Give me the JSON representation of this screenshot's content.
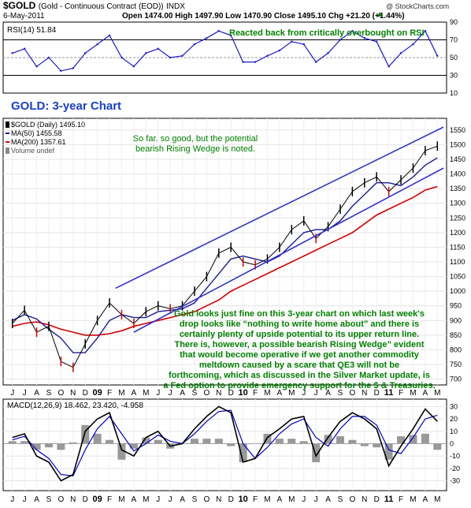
{
  "header": {
    "symbol": "$GOLD",
    "name": "(Gold - Continuous Contract (EOD))",
    "exchange": "INDX",
    "date": "6-May-2011",
    "ohlc": "Open 1474.00   High 1497.90   Low 1470.90   Close 1495.10   Chg +21.20 (+1.44%)",
    "watermark": "@ StockCharts.com",
    "trend_arrow": "▲"
  },
  "rsi_panel": {
    "label": "RSI(14) 51.84",
    "annotation": "Reacted back from critically overbought on RSI",
    "ticks": [
      "90",
      "70",
      "50",
      "30",
      "10"
    ]
  },
  "price_panel": {
    "title": "GOLD: 3-year Chart",
    "legend": {
      "price": "$GOLD (Daily) 1495.10",
      "ma50": "MA(50) 1455.58",
      "ma200": "MA(200) 1357.61",
      "volume": "Volume undef"
    },
    "annotation_top": [
      "So far. so good, but the potential",
      "bearish Rising Wedge is noted."
    ],
    "annotation_bottom": [
      "Gold looks just fine on this 3-year chart on which last week's",
      "drop looks like “nothing to write home about” and there is",
      "certainly plenty of upside potential to its upper return line.",
      "There is, however, a possible bearish Rising Wedge” evident",
      "that would become operative if we get another commodity",
      "meltdown caused by a scare that QE3 will not be",
      "forthcoming, which as discussed in the Silver Market update, is",
      "a Fed option to provide emergency support for the $ & Treasuries."
    ],
    "ticks": [
      "1550",
      "1500",
      "1450",
      "1400",
      "1350",
      "1300",
      "1250",
      "1200",
      "1150",
      "1100",
      "1050",
      "1000",
      "950",
      "900",
      "850",
      "800",
      "750",
      "700"
    ]
  },
  "macd_panel": {
    "label": "MACD(12,26,9) 18.462, 23.420, -4.958",
    "ticks": [
      "30",
      "20",
      "10",
      "0",
      "-10",
      "-20",
      "-30"
    ]
  },
  "x_axis": {
    "labels": [
      "J",
      "J",
      "A",
      "S",
      "O",
      "N",
      "D",
      "09",
      "F",
      "M",
      "A",
      "M",
      "J",
      "J",
      "A",
      "S",
      "O",
      "N",
      "D",
      "10",
      "F",
      "M",
      "A",
      "M",
      "J",
      "J",
      "A",
      "S",
      "O",
      "N",
      "D",
      "11",
      "F",
      "M",
      "A",
      "M"
    ],
    "bold_labels": [
      "09",
      "10",
      "11"
    ]
  },
  "colors": {
    "rsi_line": "#1a1acc",
    "price_up": "#000000",
    "price_down": "#cc0000",
    "ma50": "#1a1a99",
    "ma200": "#d40000",
    "trend_lines": "#3333cc",
    "annotation_text": "#008000",
    "title_text": "#1a40cc",
    "macd_line": "#000000",
    "signal_line": "#0000cc",
    "histogram": "#999999"
  },
  "chart_data": {
    "type": "line",
    "title": "GOLD: 3-year Chart",
    "x": [
      "2008-06",
      "2008-07",
      "2008-08",
      "2008-09",
      "2008-10",
      "2008-11",
      "2008-12",
      "2009-01",
      "2009-02",
      "2009-03",
      "2009-04",
      "2009-05",
      "2009-06",
      "2009-07",
      "2009-08",
      "2009-09",
      "2009-10",
      "2009-11",
      "2009-12",
      "2010-01",
      "2010-02",
      "2010-03",
      "2010-04",
      "2010-05",
      "2010-06",
      "2010-07",
      "2010-08",
      "2010-09",
      "2010-10",
      "2010-11",
      "2010-12",
      "2011-01",
      "2011-02",
      "2011-03",
      "2011-04",
      "2011-05"
    ],
    "series": [
      {
        "name": "$GOLD (Daily)",
        "values": [
          890,
          935,
          860,
          880,
          760,
          740,
          820,
          900,
          960,
          920,
          890,
          930,
          950,
          940,
          950,
          1000,
          1050,
          1130,
          1150,
          1100,
          1090,
          1110,
          1150,
          1210,
          1240,
          1180,
          1220,
          1280,
          1340,
          1370,
          1390,
          1340,
          1380,
          1420,
          1480,
          1495
        ]
      },
      {
        "name": "MA(50)",
        "values": [
          900,
          920,
          905,
          870,
          840,
          790,
          790,
          840,
          900,
          920,
          910,
          910,
          930,
          935,
          940,
          960,
          1010,
          1060,
          1110,
          1120,
          1110,
          1100,
          1120,
          1160,
          1200,
          1210,
          1210,
          1240,
          1290,
          1330,
          1370,
          1370,
          1360,
          1390,
          1430,
          1455
        ]
      },
      {
        "name": "MA(200)",
        "values": [
          880,
          890,
          895,
          885,
          870,
          860,
          850,
          850,
          855,
          865,
          880,
          890,
          900,
          910,
          920,
          930,
          950,
          970,
          1000,
          1020,
          1040,
          1060,
          1080,
          1100,
          1120,
          1140,
          1160,
          1180,
          1200,
          1230,
          1260,
          1280,
          1300,
          1320,
          1345,
          1357
        ]
      }
    ],
    "rsi": [
      55,
      60,
      40,
      50,
      35,
      38,
      55,
      65,
      75,
      50,
      40,
      55,
      60,
      50,
      52,
      65,
      72,
      80,
      75,
      45,
      45,
      52,
      58,
      68,
      65,
      45,
      55,
      70,
      80,
      72,
      68,
      40,
      55,
      65,
      80,
      52
    ],
    "macd": [
      5,
      8,
      -10,
      -15,
      -30,
      -25,
      10,
      20,
      25,
      -5,
      -10,
      5,
      10,
      -2,
      0,
      12,
      22,
      30,
      25,
      -15,
      -12,
      5,
      12,
      20,
      22,
      -10,
      5,
      18,
      25,
      20,
      12,
      -18,
      -2,
      12,
      28,
      18
    ],
    "macd_signal": [
      3,
      6,
      -5,
      -12,
      -25,
      -26,
      -5,
      12,
      22,
      8,
      -6,
      0,
      7,
      2,
      0,
      8,
      18,
      26,
      27,
      0,
      -12,
      -3,
      8,
      16,
      20,
      5,
      -2,
      12,
      22,
      22,
      15,
      -5,
      -8,
      5,
      20,
      23
    ],
    "ylim": [
      680,
      1590
    ],
    "rsi_ylim": [
      10,
      90
    ],
    "macd_ylim": [
      -38,
      36
    ],
    "xlabel": "",
    "ylabel": ""
  }
}
